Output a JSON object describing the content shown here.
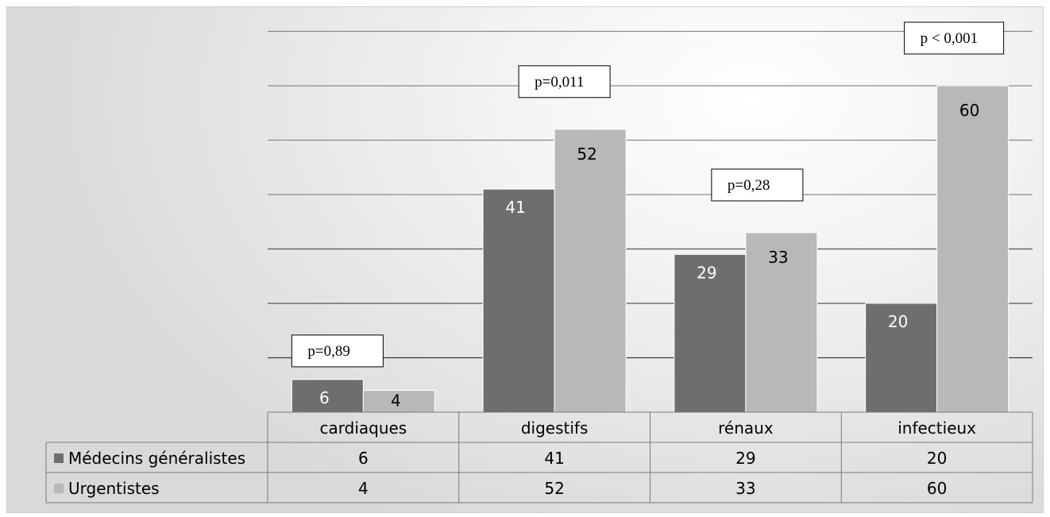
{
  "chart_data": {
    "type": "bar",
    "categories": [
      "cardiaques",
      "digestifs",
      "rénaux",
      "infectieux"
    ],
    "series": [
      {
        "name": "Médecins généralistes",
        "values": [
          6,
          41,
          29,
          20
        ],
        "color": "#6e6e6e"
      },
      {
        "name": "Urgentistes",
        "values": [
          4,
          52,
          33,
          60
        ],
        "color": "#b8b8b8"
      }
    ],
    "annotations": [
      "p=0,89",
      "p=0,011",
      "p=0,28",
      "p < 0,001"
    ],
    "ylim": [
      0,
      70
    ],
    "grid": true,
    "legend": "data-table",
    "data_table": true
  }
}
